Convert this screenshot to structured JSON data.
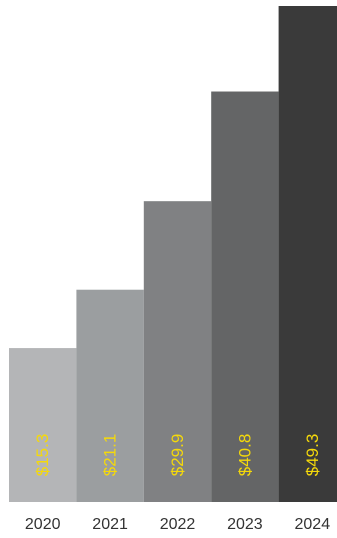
{
  "chart_data": {
    "type": "bar",
    "title": "",
    "xlabel": "",
    "ylabel": "",
    "categories": [
      "2020",
      "2021",
      "2022",
      "2023",
      "2024"
    ],
    "values": [
      15.3,
      21.1,
      29.9,
      40.8,
      49.3
    ],
    "data_labels": [
      "$15.3",
      "$21.1",
      "$29.9",
      "$40.8",
      "$49.3"
    ],
    "ylim": [
      0,
      49.3
    ],
    "grid": false,
    "legend": "none",
    "colors": {
      "bars": [
        "#b4b5b7",
        "#9b9ea0",
        "#808183",
        "#646566",
        "#3a3a3a"
      ],
      "label": "#f5d90a",
      "tick": "#333333"
    }
  }
}
